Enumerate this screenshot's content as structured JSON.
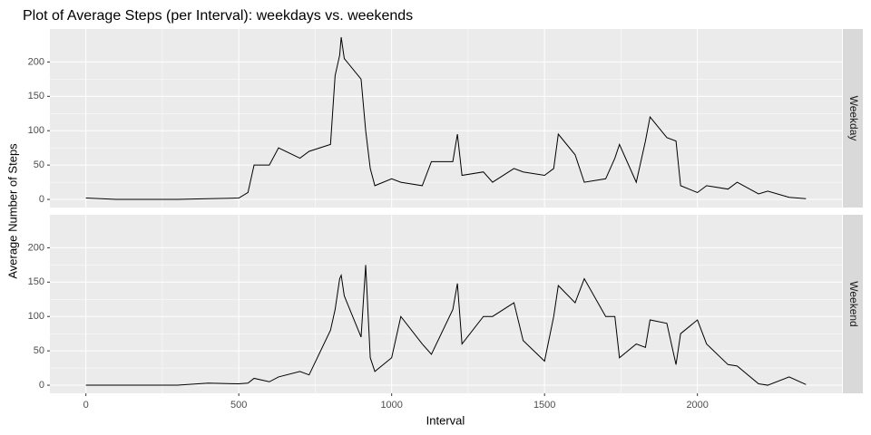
{
  "chart_data": {
    "type": "line",
    "title": "Plot of Average Steps (per Interval): weekdays vs. weekends",
    "xlabel": "Interval",
    "ylabel": "Average Number of Steps",
    "x": [
      0,
      100,
      200,
      300,
      400,
      500,
      530,
      550,
      600,
      630,
      700,
      730,
      800,
      815,
      830,
      835,
      845,
      900,
      915,
      930,
      945,
      1000,
      1030,
      1100,
      1130,
      1200,
      1215,
      1230,
      1300,
      1330,
      1400,
      1430,
      1500,
      1530,
      1545,
      1600,
      1630,
      1700,
      1730,
      1745,
      1800,
      1830,
      1845,
      1900,
      1930,
      1945,
      2000,
      2030,
      2100,
      2130,
      2200,
      2230,
      2300,
      2355
    ],
    "series": [
      {
        "name": "Weekday",
        "color": "#000000",
        "values": [
          2,
          0,
          0,
          0,
          1,
          2,
          10,
          50,
          50,
          75,
          60,
          70,
          80,
          180,
          210,
          236,
          205,
          175,
          100,
          45,
          20,
          30,
          25,
          20,
          55,
          55,
          95,
          35,
          40,
          25,
          45,
          40,
          35,
          45,
          95,
          65,
          25,
          30,
          60,
          80,
          25,
          85,
          120,
          90,
          85,
          20,
          10,
          20,
          15,
          25,
          8,
          12,
          3,
          1
        ]
      },
      {
        "name": "Weekend",
        "color": "#000000",
        "values": [
          0,
          0,
          0,
          0,
          3,
          2,
          3,
          10,
          5,
          12,
          20,
          15,
          80,
          110,
          155,
          160,
          130,
          70,
          175,
          40,
          20,
          40,
          100,
          60,
          45,
          110,
          148,
          60,
          100,
          100,
          120,
          65,
          35,
          100,
          145,
          120,
          155,
          100,
          100,
          40,
          60,
          55,
          95,
          90,
          30,
          75,
          95,
          60,
          30,
          28,
          2,
          0,
          12,
          1
        ]
      }
    ],
    "xlim": [
      -117.75,
      2472.75
    ],
    "xticks": [
      0,
      500,
      1000,
      1500,
      2000
    ],
    "ylim": [
      -11.8,
      248
    ],
    "yticks": [
      0,
      50,
      100,
      150,
      200
    ],
    "grid": true
  }
}
